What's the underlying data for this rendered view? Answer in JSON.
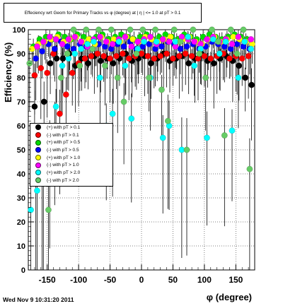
{
  "title": "Effeciency wrt Geom for Primary Tracks vs φ (degree) at |  η  | <= 1.0 at pT > 0.1",
  "footer": "Wed Nov  9 10:31:20 2011",
  "chart_data": {
    "type": "scatter",
    "title": "Effeciency wrt Geom for Primary Tracks vs φ (degree) at |  η  | <= 1.0 at pT > 0.1",
    "xlabel": "φ (degree)",
    "ylabel": "Efficiency (%)",
    "xlim": [
      -180,
      180
    ],
    "ylim": [
      0,
      100
    ],
    "x_ticks": [
      -150,
      -100,
      -50,
      0,
      50,
      100,
      150
    ],
    "y_ticks": [
      0,
      10,
      20,
      30,
      40,
      50,
      60,
      70,
      80,
      90,
      100
    ],
    "grid": true,
    "legend_position": "mid-left",
    "series": [
      {
        "name": "(+) with pT > 0.1",
        "color": "#000000",
        "x": [
          -170,
          -155,
          -145,
          -135,
          -125,
          -115,
          -105,
          -95,
          -85,
          -75,
          -65,
          -55,
          -45,
          -35,
          -25,
          -15,
          -5,
          5,
          15,
          25,
          35,
          45,
          55,
          65,
          75,
          85,
          95,
          105,
          115,
          125,
          135,
          145,
          155,
          165,
          175
        ],
        "y": [
          68,
          70,
          86,
          88,
          88,
          90,
          85,
          88,
          86,
          89,
          87,
          88,
          86,
          88,
          90,
          87,
          88,
          89,
          86,
          88,
          90,
          87,
          88,
          89,
          86,
          88,
          90,
          87,
          86,
          88,
          89,
          87,
          85,
          80,
          77
        ]
      },
      {
        "name": "(-) with pT > 0.1",
        "color": "#ff0000",
        "x": [
          -170,
          -160,
          -150,
          -140,
          -130,
          -120,
          -110,
          -100,
          -90,
          -80,
          -70,
          -60,
          -50,
          -40,
          -30,
          -20,
          -10,
          0,
          10,
          20,
          30,
          40,
          50,
          60,
          70,
          80,
          90,
          100,
          110,
          120,
          130,
          140,
          150,
          160,
          170
        ],
        "y": [
          81,
          84,
          82,
          90,
          65,
          73,
          82,
          86,
          88,
          89,
          90,
          89,
          88,
          89,
          90,
          88,
          89,
          90,
          89,
          88,
          89,
          90,
          88,
          89,
          90,
          89,
          88,
          89,
          88,
          89,
          90,
          88,
          89,
          88,
          89
        ]
      },
      {
        "name": "(+) with pT > 0.5",
        "color": "#00dd00",
        "x": [
          -172,
          -162,
          -152,
          -142,
          -132,
          -122,
          -112,
          -102,
          -92,
          -82,
          -72,
          -62,
          -52,
          -42,
          -32,
          -22,
          -12,
          -2,
          8,
          18,
          28,
          38,
          48,
          58,
          68,
          78,
          88,
          98,
          108,
          118,
          128,
          138,
          148,
          158,
          168
        ],
        "y": [
          93,
          96,
          97,
          96,
          98,
          97,
          96,
          98,
          97,
          96,
          97,
          98,
          96,
          97,
          98,
          97,
          96,
          97,
          98,
          96,
          97,
          98,
          97,
          96,
          98,
          97,
          96,
          97,
          98,
          97,
          96,
          97,
          98,
          97,
          96
        ]
      },
      {
        "name": "(-) with pT > 0.5",
        "color": "#0000ff",
        "x": [
          -168,
          -158,
          -148,
          -138,
          -128,
          -118,
          -108,
          -98,
          -88,
          -78,
          -68,
          -58,
          -48,
          -38,
          -28,
          -18,
          -8,
          2,
          12,
          22,
          32,
          42,
          52,
          62,
          72,
          82,
          92,
          102,
          112,
          122,
          132,
          142,
          152,
          162,
          172
        ],
        "y": [
          88,
          91,
          94,
          92,
          95,
          93,
          92,
          94,
          93,
          92,
          94,
          93,
          92,
          94,
          93,
          95,
          92,
          93,
          94,
          92,
          93,
          95,
          94,
          92,
          93,
          94,
          92,
          93,
          95,
          94,
          93,
          92,
          94,
          93,
          92
        ]
      },
      {
        "name": "(+) with pT > 1.0",
        "color": "#ffff00",
        "x": [
          -174,
          -164,
          -154,
          -144,
          -134,
          -124,
          -114,
          -104,
          -94,
          -84,
          -74,
          -64,
          -54,
          -44,
          -34,
          -24,
          -14,
          -4,
          6,
          16,
          26,
          36,
          46,
          56,
          66,
          76,
          86,
          96,
          106,
          116,
          126,
          136,
          146,
          156,
          166,
          176
        ],
        "y": [
          92,
          94,
          95,
          96,
          97,
          95,
          96,
          97,
          95,
          96,
          94,
          97,
          95,
          96,
          95,
          97,
          96,
          95,
          97,
          96,
          95,
          96,
          97,
          95,
          96,
          97,
          95,
          94,
          96,
          97,
          95,
          96,
          97,
          96,
          95,
          94
        ]
      },
      {
        "name": "(-) with pT > 1.0",
        "color": "#ff00ff",
        "x": [
          -166,
          -156,
          -146,
          -136,
          -126,
          -116,
          -106,
          -96,
          -86,
          -76,
          -66,
          -56,
          -46,
          -36,
          -26,
          -16,
          -6,
          4,
          14,
          24,
          34,
          44,
          54,
          64,
          74,
          84,
          94,
          104,
          114,
          124,
          134,
          144,
          154,
          164,
          174
        ],
        "y": [
          93,
          95,
          97,
          96,
          94,
          96,
          97,
          95,
          93,
          96,
          97,
          95,
          94,
          96,
          97,
          93,
          95,
          96,
          97,
          94,
          96,
          95,
          93,
          97,
          96,
          95,
          94,
          96,
          97,
          95,
          96,
          94,
          97,
          95,
          96
        ]
      },
      {
        "name": "(+) with pT > 2.0",
        "color": "#00ffff",
        "x": [
          -176,
          -166,
          -156,
          -146,
          -136,
          -126,
          -116,
          -106,
          -96,
          -86,
          -76,
          -66,
          -56,
          -46,
          -36,
          -26,
          -16,
          -6,
          4,
          14,
          24,
          34,
          44,
          54,
          64,
          74,
          84,
          94,
          104,
          114,
          124,
          134,
          144,
          154,
          164,
          174
        ],
        "y": [
          25,
          33,
          45,
          50,
          68,
          85,
          88,
          90,
          92,
          94,
          95,
          80,
          60,
          65,
          95,
          85,
          63,
          92,
          95,
          80,
          95,
          55,
          60,
          95,
          50,
          97,
          85,
          92,
          55,
          96,
          90,
          95,
          58,
          80,
          95,
          92
        ]
      },
      {
        "name": "(-) with pT > 2.0",
        "color": "#66cc66",
        "x": [
          -178,
          -168,
          -158,
          -148,
          -138,
          -128,
          -118,
          -108,
          -98,
          -88,
          -78,
          -68,
          -58,
          -48,
          -38,
          -28,
          -18,
          -8,
          2,
          12,
          22,
          32,
          42,
          52,
          62,
          72,
          82,
          92,
          102,
          112,
          122,
          132,
          142,
          152,
          162,
          172
        ],
        "y": [
          86,
          42,
          36,
          25,
          60,
          80,
          90,
          100,
          85,
          100,
          92,
          100,
          85,
          100,
          80,
          70,
          100,
          90,
          100,
          80,
          100,
          75,
          62,
          100,
          95,
          50,
          100,
          90,
          80,
          100,
          95,
          56,
          100,
          90,
          100,
          42
        ]
      }
    ]
  }
}
